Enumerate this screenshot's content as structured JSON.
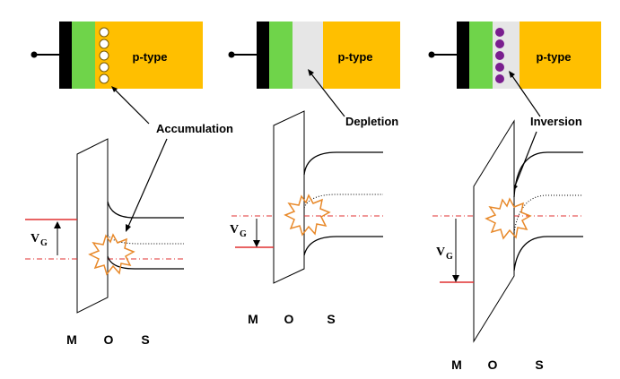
{
  "colors": {
    "metal": "#000000",
    "oxide": "#6fd44a",
    "ptype": "#ffbf00",
    "depletion": "#e6e6e6",
    "hole": "#ffffff",
    "electron": "#7a1f8f",
    "fermi": "#e03030",
    "burst": "#e8892a",
    "line": "#000000"
  },
  "panels": [
    {
      "region_label": "p-type",
      "state_label": "Accumulation",
      "gate_label": "V",
      "gate_sub": "G",
      "layer_labels": [
        "M",
        "O",
        "S"
      ]
    },
    {
      "region_label": "p-type",
      "state_label": "Depletion",
      "gate_label": "V",
      "gate_sub": "G",
      "layer_labels": [
        "M",
        "O",
        "S"
      ]
    },
    {
      "region_label": "p-type",
      "state_label": "Inversion",
      "gate_label": "V",
      "gate_sub": "G",
      "layer_labels": [
        "M",
        "O",
        "S"
      ]
    }
  ]
}
